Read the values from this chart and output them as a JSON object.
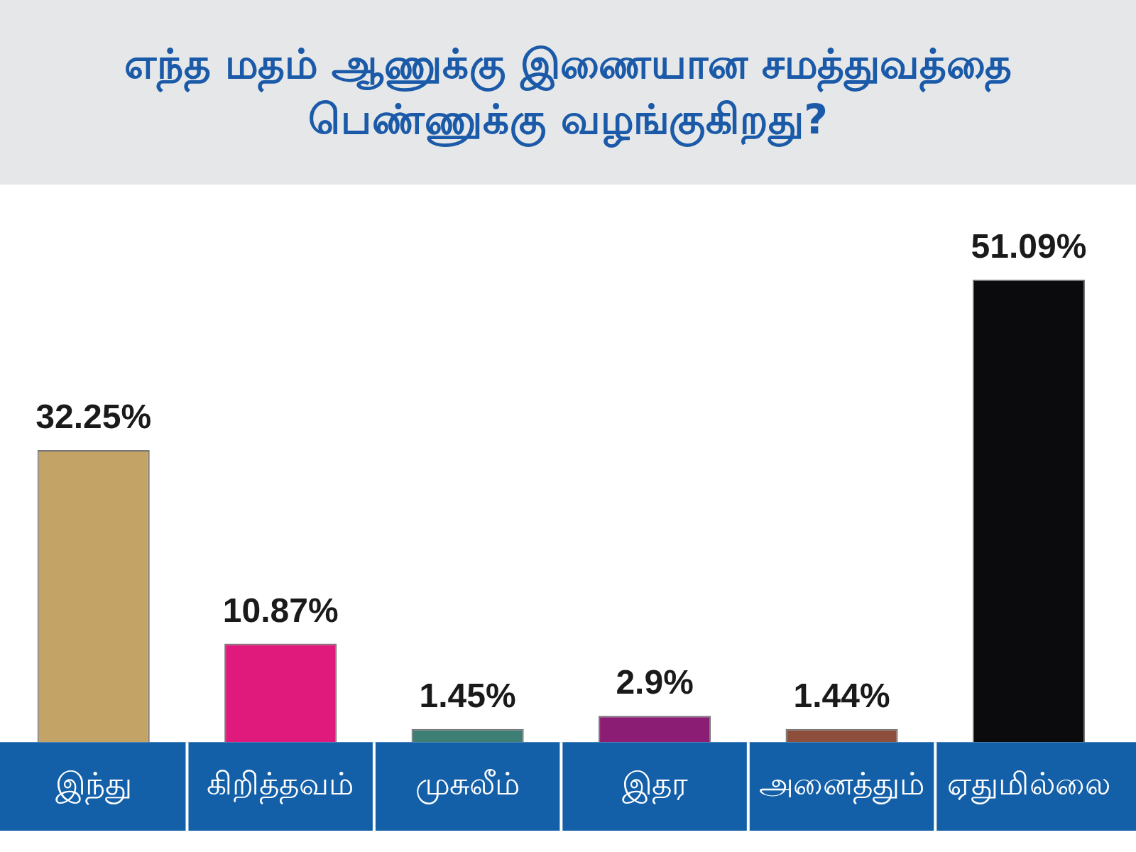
{
  "chart_data": {
    "type": "bar",
    "title": "எந்த மதம் ஆணுக்கு இணையான சமத்துவத்தை பெண்ணுக்கு வழங்குகிறது?",
    "categories": [
      "இந்து",
      "கிறித்தவம்",
      "முசுலீம்",
      "இதர",
      "அனைத்தும்",
      "ஏதுமில்லை"
    ],
    "values": [
      32.25,
      10.87,
      1.45,
      2.9,
      1.44,
      51.09
    ],
    "colors": [
      "#c4a466",
      "#e0197d",
      "#3d7f74",
      "#8b1e74",
      "#8d4f3b",
      "#0b0b0d"
    ],
    "value_labels": [
      "32.25%",
      "10.87%",
      "1.45%",
      "2.9%",
      "1.44%",
      "51.09%"
    ],
    "grid": false,
    "legend": false
  }
}
